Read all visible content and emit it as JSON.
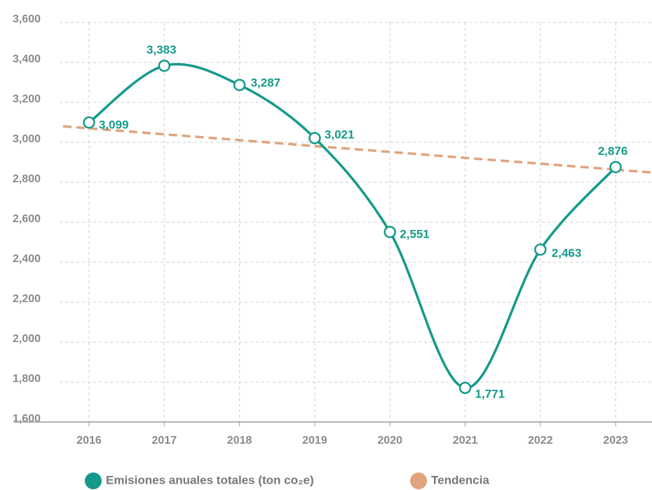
{
  "chart_data": {
    "type": "line",
    "categories": [
      "2016",
      "2017",
      "2018",
      "2019",
      "2020",
      "2021",
      "2022",
      "2023"
    ],
    "series": [
      {
        "name": "Emisiones anuales totales (ton co₂e)",
        "color": "#149a8b",
        "values": [
          3099,
          3383,
          3287,
          3021,
          2551,
          1771,
          2463,
          2876
        ],
        "value_labels": [
          "3,099",
          "3,383",
          "3,287",
          "3,021",
          "2,551",
          "1,771",
          "2,463",
          "2,876"
        ]
      },
      {
        "name": "Tendencia",
        "color": "#e0a47c",
        "dashed": true,
        "values": [
          3070,
          3040,
          3011,
          2981,
          2952,
          2922,
          2893,
          2863
        ]
      }
    ],
    "ylim": [
      1600,
      3600
    ],
    "yticks": [
      {
        "value": 1600,
        "label": "1,600"
      },
      {
        "value": 1800,
        "label": "1,800"
      },
      {
        "value": 2000,
        "label": "2,000"
      },
      {
        "value": 2200,
        "label": "2,200"
      },
      {
        "value": 2400,
        "label": "2,400"
      },
      {
        "value": 2600,
        "label": "2,600"
      },
      {
        "value": 2800,
        "label": "2,800"
      },
      {
        "value": 3000,
        "label": "3,000"
      },
      {
        "value": 3200,
        "label": "3,200"
      },
      {
        "value": 3400,
        "label": "3,400"
      },
      {
        "value": 3600,
        "label": "3,600"
      }
    ],
    "grid": true,
    "legend": "bottom"
  }
}
